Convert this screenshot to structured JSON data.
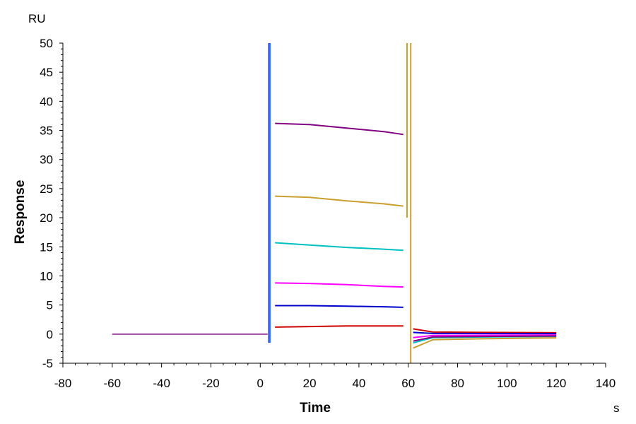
{
  "chart_data": {
    "type": "line",
    "title": "",
    "xlabel": "Time",
    "xunit": "s",
    "ylabel": "Response",
    "yunit": "RU",
    "xlim": [
      -80,
      140
    ],
    "ylim": [
      -5,
      50
    ],
    "x_ticks": [
      -80,
      -60,
      -40,
      -20,
      0,
      20,
      40,
      60,
      80,
      100,
      120,
      140
    ],
    "y_ticks": [
      -5,
      0,
      5,
      10,
      15,
      20,
      25,
      30,
      35,
      40,
      45,
      50
    ],
    "grid": false,
    "legend": "none",
    "series": [
      {
        "color": "#cc0000",
        "x": [
          6,
          20,
          35,
          50,
          58
        ],
        "y": [
          1.2,
          1.3,
          1.4,
          1.4,
          1.4
        ]
      },
      {
        "color": "#0000cc",
        "x": [
          6,
          20,
          35,
          50,
          58
        ],
        "y": [
          4.9,
          4.9,
          4.8,
          4.7,
          4.6
        ]
      },
      {
        "color": "#ff00ff",
        "x": [
          6,
          20,
          35,
          50,
          58
        ],
        "y": [
          8.8,
          8.7,
          8.5,
          8.2,
          8.1
        ]
      },
      {
        "color": "#00c0c0",
        "x": [
          6,
          20,
          35,
          50,
          58
        ],
        "y": [
          15.7,
          15.3,
          14.9,
          14.6,
          14.4
        ]
      },
      {
        "color": "#c8a030",
        "x": [
          6,
          20,
          35,
          50,
          58
        ],
        "y": [
          23.7,
          23.5,
          22.9,
          22.4,
          22.0
        ]
      },
      {
        "color": "#800080",
        "x": [
          6,
          20,
          35,
          50,
          58
        ],
        "y": [
          36.2,
          36.0,
          35.4,
          34.8,
          34.3
        ]
      }
    ],
    "baseline": {
      "x": [
        -60,
        3,
        62,
        120
      ],
      "y": [
        0,
        0,
        0,
        0
      ]
    }
  }
}
